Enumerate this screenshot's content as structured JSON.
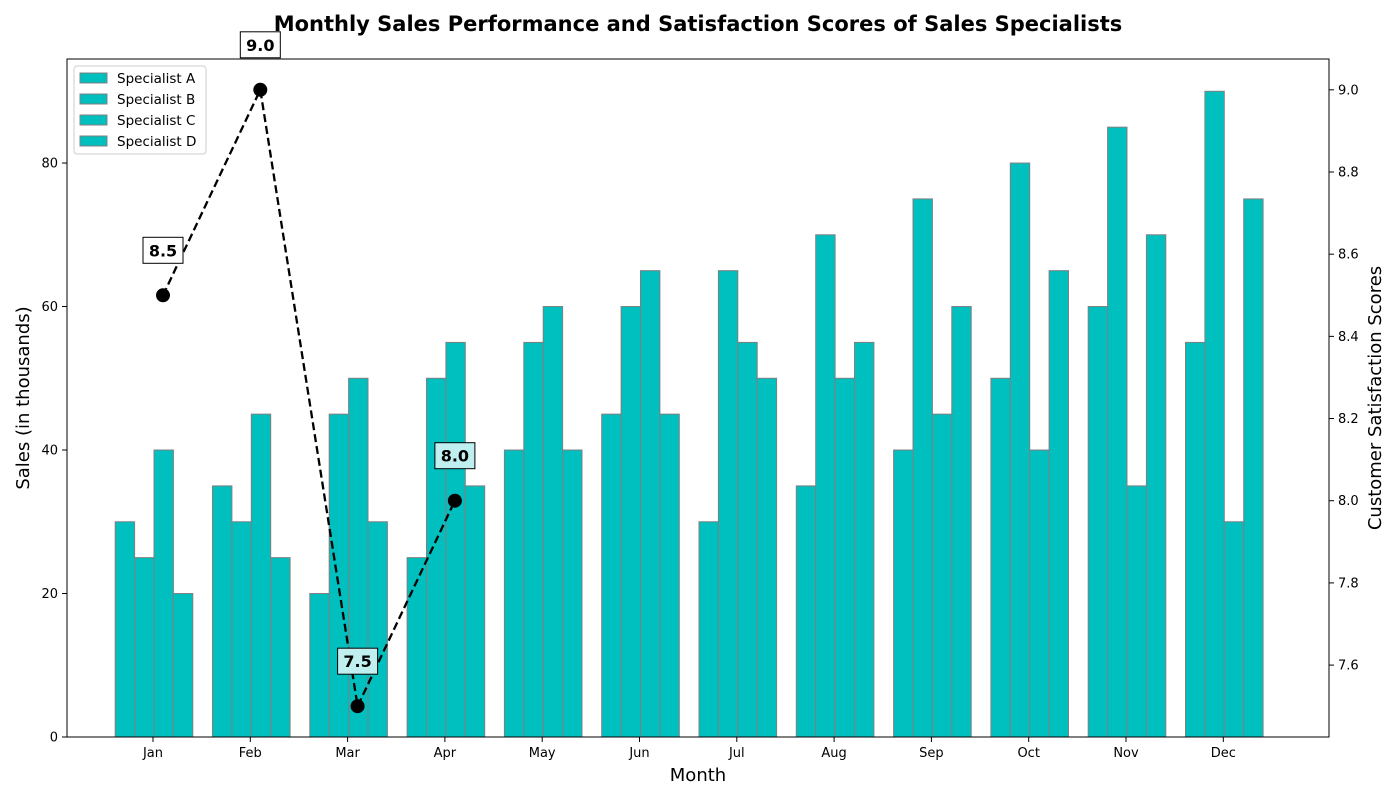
{
  "chart_data": {
    "type": "bar",
    "title": "Monthly Sales Performance and Satisfaction Scores of Sales Specialists",
    "xlabel": "Month",
    "ylabel": "Sales (in thousands)",
    "y2label": "Customer Satisfaction Scores",
    "categories": [
      "Jan",
      "Feb",
      "Mar",
      "Apr",
      "May",
      "Jun",
      "Jul",
      "Aug",
      "Sep",
      "Oct",
      "Nov",
      "Dec"
    ],
    "series": [
      {
        "name": "Specialist A",
        "values": [
          30,
          35,
          20,
          25,
          40,
          45,
          30,
          35,
          40,
          50,
          60,
          55
        ]
      },
      {
        "name": "Specialist B",
        "values": [
          25,
          30,
          45,
          50,
          55,
          60,
          65,
          70,
          75,
          80,
          85,
          90
        ]
      },
      {
        "name": "Specialist C",
        "values": [
          40,
          45,
          50,
          55,
          60,
          65,
          55,
          50,
          45,
          40,
          35,
          30
        ]
      },
      {
        "name": "Specialist D",
        "values": [
          20,
          25,
          30,
          35,
          40,
          45,
          50,
          55,
          60,
          65,
          70,
          75
        ]
      }
    ],
    "bar_color": "#00bfbf",
    "bar_edge_color": "#808080",
    "ylim": [
      0,
      94.5
    ],
    "yticks": [
      0,
      20,
      40,
      60,
      80
    ],
    "satisfaction": {
      "categories": [
        "Jan",
        "Feb",
        "Mar",
        "Apr"
      ],
      "values": [
        8.5,
        9.0,
        7.5,
        8.0
      ],
      "labels": [
        "8.5",
        "9.0",
        "7.5",
        "8.0"
      ],
      "line_style": "dashed",
      "marker_color": "#000000",
      "label_box_colors": [
        "#ffffff",
        "#ffffff",
        "#bfefef",
        "#bfefef"
      ]
    },
    "y2lim": [
      7.425,
      9.075
    ],
    "y2ticks": [
      "7.6",
      "7.8",
      "8.0",
      "8.2",
      "8.4",
      "8.6",
      "8.8",
      "9.0"
    ],
    "y2tick_values": [
      7.6,
      7.8,
      8.0,
      8.2,
      8.4,
      8.6,
      8.8,
      9.0
    ],
    "legend_position": "upper-left",
    "grid": false
  }
}
